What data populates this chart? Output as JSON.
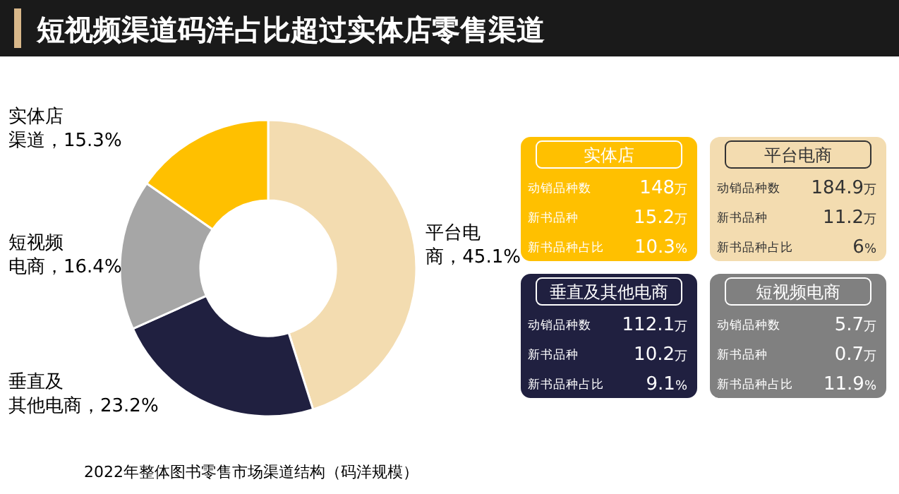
{
  "chart_data": [
    {
      "type": "donut",
      "title": "短视频渠道码洋占比超过实体店零售渠道",
      "categories": [
        "平台电商",
        "垂直及其他电商",
        "短视频电商",
        "实体店渠道"
      ],
      "values": [
        45.1,
        23.2,
        16.4,
        15.3
      ],
      "value_labels": [
        "45.1%",
        "23.2%",
        "16.4%",
        "15.3%"
      ],
      "colors": [
        "#f3dcb0",
        "#202040",
        "#a6a6a6",
        "#ffc000"
      ],
      "annotations": [
        "2022年整体图书零售市场渠道结构（码洋规模）"
      ]
    },
    {
      "type": "other",
      "title": "实体店",
      "categories": [
        "动销品种数",
        "新书品种",
        "新书品种占比"
      ],
      "value_labels": [
        "148万",
        "15.2万",
        "10.3%"
      ]
    },
    {
      "type": "other",
      "title": "平台电商",
      "categories": [
        "动销品种数",
        "新书品种",
        "新书品种占比"
      ],
      "value_labels": [
        "184.9万",
        "11.2万",
        "6%"
      ]
    },
    {
      "type": "other",
      "title": "垂直及其他电商",
      "categories": [
        "动销品种数",
        "新书品种",
        "新书品种占比"
      ],
      "value_labels": [
        "112.1万",
        "10.2万",
        "9.1%"
      ]
    },
    {
      "type": "other",
      "title": "短视频电商",
      "categories": [
        "动销品种数",
        "新书品种",
        "新书品种占比"
      ],
      "value_labels": [
        "5.7万",
        "0.7万",
        "11.9%"
      ]
    }
  ]
}
